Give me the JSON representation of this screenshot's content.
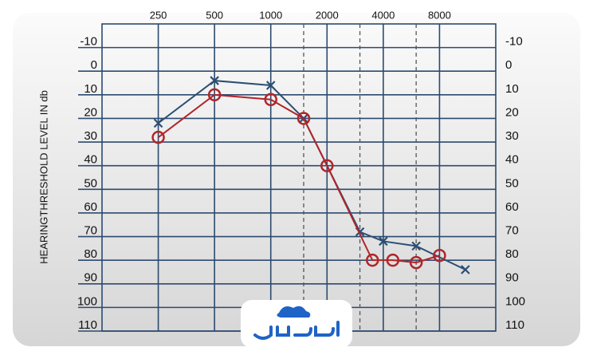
{
  "chart_data": {
    "type": "line",
    "y_label": "HEARINGTHRESHOLD LEVEL IN db",
    "xlim": [
      125,
      16000
    ],
    "xscale": "log",
    "xticks": [
      250,
      500,
      1000,
      2000,
      4000,
      8000
    ],
    "xminor": [
      1500,
      3000,
      6000
    ],
    "ylim": [
      -20,
      110
    ],
    "yinverted": true,
    "yticks": [
      -10,
      0,
      10,
      20,
      30,
      40,
      50,
      60,
      70,
      80,
      90,
      100,
      110
    ],
    "grid": true,
    "series": [
      {
        "color": "#2b4f73",
        "marker": "x",
        "x": [
          250,
          500,
          1000,
          1500,
          3000,
          4000,
          6000,
          11000
        ],
        "values": [
          22,
          4,
          6,
          20,
          68,
          72,
          74,
          84
        ]
      },
      {
        "color": "#b0252a",
        "marker": "o",
        "x": [
          250,
          500,
          1000,
          1500,
          2000,
          3500,
          4500,
          6000,
          8000
        ],
        "values": [
          28,
          10,
          12,
          20,
          40,
          80,
          80,
          81,
          78
        ]
      }
    ]
  }
}
